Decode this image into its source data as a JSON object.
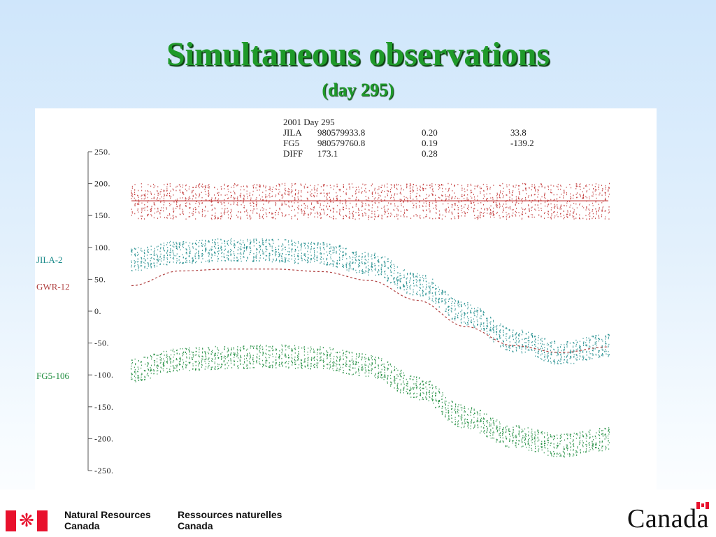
{
  "slide": {
    "title": "Simultaneous observations",
    "subtitle": "(day 295)"
  },
  "chart_data": {
    "type": "scatter",
    "ylim": [
      -250,
      250
    ],
    "yticks": [
      "250.",
      "200.",
      "150.",
      "100.",
      "50.",
      "0.",
      "-50.",
      "-100.",
      "-150.",
      "-200.",
      "-250."
    ],
    "ytick_values": [
      250,
      200,
      150,
      100,
      50,
      0,
      -50,
      -100,
      -150,
      -200,
      -250
    ],
    "x_range": [
      0,
      1
    ],
    "info_table": [
      [
        "2001 Day 295",
        "",
        "",
        ""
      ],
      [
        "JILA",
        "980579933.8",
        "0.20",
        "33.8"
      ],
      [
        "FG5",
        "980579760.8",
        "0.19",
        "-139.2"
      ],
      [
        "DIFF",
        "173.1",
        "0.28",
        ""
      ]
    ],
    "series_labels": [
      {
        "name": "JILA-2",
        "color": "#1a8a8a",
        "y_level": 80
      },
      {
        "name": "GWR-12",
        "color": "#b04040",
        "y_level": 38
      },
      {
        "name": "FG5-106",
        "color": "#1a8a3a",
        "y_level": -102
      }
    ],
    "series": [
      {
        "name": "DIFF",
        "kind": "points",
        "color": "#c03030",
        "spread": 28,
        "x": [
          0,
          0.1,
          0.2,
          0.3,
          0.4,
          0.5,
          0.6,
          0.7,
          0.8,
          0.9,
          1.0
        ],
        "y": [
          173,
          173,
          173,
          173,
          173,
          173,
          173,
          173,
          173,
          173,
          173
        ]
      },
      {
        "name": "DIFF",
        "kind": "line",
        "color": "#c03030",
        "x": [
          0,
          1.0
        ],
        "y": [
          173,
          173
        ]
      },
      {
        "name": "JILA-2",
        "kind": "points",
        "color": "#1a8a8a",
        "spread": 18,
        "x": [
          0,
          0.1,
          0.2,
          0.3,
          0.4,
          0.5,
          0.6,
          0.7,
          0.8,
          0.9,
          1.0
        ],
        "y": [
          82,
          93,
          97,
          96,
          91,
          75,
          43,
          -3,
          -45,
          -65,
          -53
        ]
      },
      {
        "name": "GWR-12",
        "kind": "dashed-line",
        "color": "#b04040",
        "x": [
          0,
          0.1,
          0.2,
          0.3,
          0.4,
          0.5,
          0.6,
          0.7,
          0.8,
          0.9,
          1.0
        ],
        "y": [
          40,
          63,
          66,
          66,
          62,
          48,
          17,
          -24,
          -54,
          -65,
          -56
        ]
      },
      {
        "name": "FG5-106",
        "kind": "points",
        "color": "#1a8a3a",
        "spread": 18,
        "x": [
          0,
          0.1,
          0.2,
          0.3,
          0.4,
          0.5,
          0.6,
          0.7,
          0.8,
          0.9,
          1.0
        ],
        "y": [
          -92,
          -75,
          -72,
          -70,
          -73,
          -85,
          -120,
          -165,
          -196,
          -210,
          -200
        ]
      }
    ]
  },
  "footer": {
    "dept_en_line1": "Natural Resources",
    "dept_en_line2": "Canada",
    "dept_fr_line1": "Ressources naturelles",
    "dept_fr_line2": "Canada",
    "wordmark": "Canada"
  },
  "colors": {
    "title": "#1f9a2a",
    "flag_red": "#e8112d"
  }
}
